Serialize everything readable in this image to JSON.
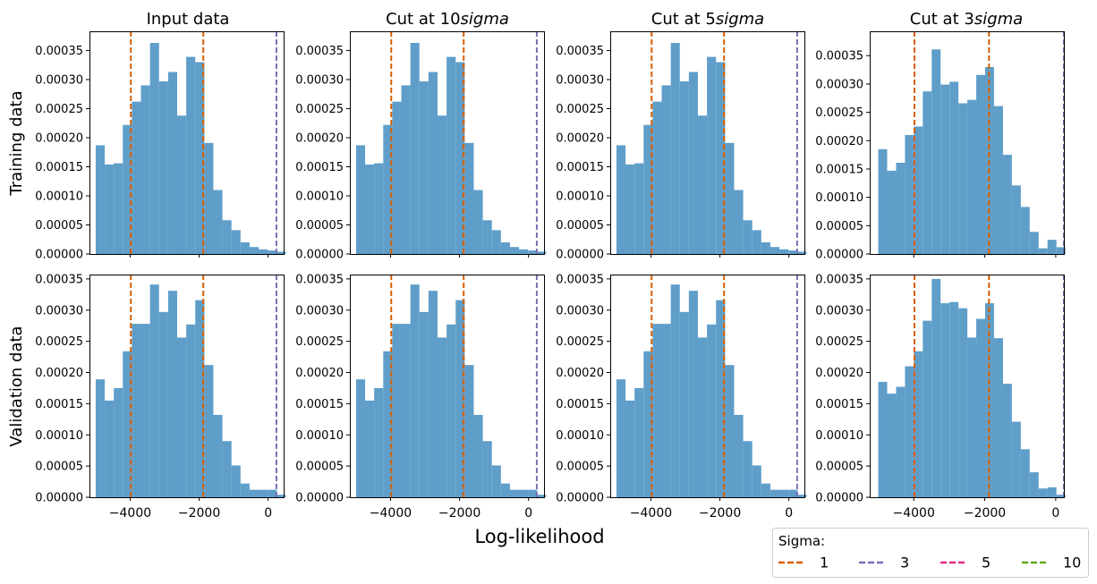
{
  "figure": {
    "xlabel": "Log-likelihood",
    "row_labels": [
      "Training data",
      "Validation data"
    ],
    "col_titles": [
      "Input data",
      "Cut at 10",
      "Cut at 5",
      "Cut at 3"
    ],
    "col_title_suffix": "sigma",
    "legend": {
      "title": "Sigma:",
      "items": [
        {
          "label": "1",
          "color": "#d95f02"
        },
        {
          "label": "3",
          "color": "#7570b3"
        },
        {
          "label": "5",
          "color": "#e7298a"
        },
        {
          "label": "10",
          "color": "#66a61e"
        }
      ],
      "placement": "bottom-right"
    }
  },
  "chart_data": [
    {
      "type": "bar",
      "title": "Input data",
      "ylabel": "Training data",
      "xlabel": "",
      "bin_start": -5000,
      "bin_width": 262.5,
      "values": [
        0.000187,
        0.000154,
        0.000156,
        0.000222,
        0.000262,
        0.00029,
        0.000363,
        0.000297,
        0.000313,
        0.000238,
        0.000339,
        0.00033,
        0.000191,
        0.00011,
        5.8e-05,
        4.1e-05,
        2e-05,
        1.2e-05,
        8e-06,
        6e-06,
        4e-06
      ],
      "vlines": [
        {
          "x": -3980,
          "sigma": "1"
        },
        {
          "x": -1880,
          "sigma": "1"
        },
        {
          "x": 240,
          "sigma": "3"
        }
      ],
      "xlim": [
        -5180,
        450
      ],
      "ylim": [
        0,
        0.000383
      ],
      "xticks": [
        "-4000",
        "-2000",
        "0"
      ],
      "xtick_values": [
        -4000,
        -2000,
        0
      ],
      "yticks": [
        "0.00000",
        "0.00005",
        "0.00010",
        "0.00015",
        "0.00020",
        "0.00025",
        "0.00030",
        "0.00035"
      ],
      "ytick_values": [
        0,
        5e-05,
        0.0001,
        0.00015,
        0.0002,
        0.00025,
        0.0003,
        0.00035
      ]
    },
    {
      "type": "bar",
      "title": "Cut at 10sigma",
      "ylabel": "",
      "xlabel": "",
      "bin_start": -5000,
      "bin_width": 262.5,
      "values": [
        0.000187,
        0.000154,
        0.000156,
        0.000222,
        0.000262,
        0.00029,
        0.000363,
        0.000297,
        0.000313,
        0.000238,
        0.000339,
        0.00033,
        0.000191,
        0.00011,
        5.8e-05,
        4.1e-05,
        2e-05,
        1.2e-05,
        8e-06,
        6e-06,
        4e-06
      ],
      "vlines": [
        {
          "x": -3980,
          "sigma": "1"
        },
        {
          "x": -1880,
          "sigma": "1"
        },
        {
          "x": 240,
          "sigma": "3"
        }
      ],
      "xlim": [
        -5180,
        450
      ],
      "ylim": [
        0,
        0.000383
      ],
      "xticks": [
        "-4000",
        "-2000",
        "0"
      ],
      "xtick_values": [
        -4000,
        -2000,
        0
      ],
      "yticks": [
        "0.00000",
        "0.00005",
        "0.00010",
        "0.00015",
        "0.00020",
        "0.00025",
        "0.00030",
        "0.00035"
      ],
      "ytick_values": [
        0,
        5e-05,
        0.0001,
        0.00015,
        0.0002,
        0.00025,
        0.0003,
        0.00035
      ]
    },
    {
      "type": "bar",
      "title": "Cut at 5sigma",
      "ylabel": "",
      "xlabel": "",
      "bin_start": -5000,
      "bin_width": 262.5,
      "values": [
        0.000187,
        0.000154,
        0.000156,
        0.000222,
        0.000262,
        0.00029,
        0.000363,
        0.000297,
        0.000313,
        0.000238,
        0.000339,
        0.00033,
        0.000191,
        0.00011,
        5.8e-05,
        4.1e-05,
        2e-05,
        1.2e-05,
        8e-06,
        6e-06,
        4e-06
      ],
      "vlines": [
        {
          "x": -3980,
          "sigma": "1"
        },
        {
          "x": -1880,
          "sigma": "1"
        },
        {
          "x": 240,
          "sigma": "3"
        }
      ],
      "xlim": [
        -5180,
        450
      ],
      "ylim": [
        0,
        0.000383
      ],
      "xticks": [
        "-4000",
        "-2000",
        "0"
      ],
      "xtick_values": [
        -4000,
        -2000,
        0
      ],
      "yticks": [
        "0.00000",
        "0.00005",
        "0.00010",
        "0.00015",
        "0.00020",
        "0.00025",
        "0.00030",
        "0.00035"
      ],
      "ytick_values": [
        0,
        5e-05,
        0.0001,
        0.00015,
        0.0002,
        0.00025,
        0.0003,
        0.00035
      ]
    },
    {
      "type": "bar",
      "title": "Cut at 3sigma",
      "ylabel": "",
      "xlabel": "",
      "bin_start": -5000,
      "bin_width": 251,
      "values": [
        0.000185,
        0.000147,
        0.000161,
        0.00021,
        0.000225,
        0.000287,
        0.000361,
        0.000299,
        0.000304,
        0.000266,
        0.000272,
        0.000316,
        0.00033,
        0.000261,
        0.000175,
        0.000121,
        8.3e-05,
        3.9e-05,
        1e-05,
        2.5e-05,
        1.2e-05
      ],
      "vlines": [
        {
          "x": -3980,
          "sigma": "1"
        },
        {
          "x": -1880,
          "sigma": "1"
        },
        {
          "x": 230,
          "sigma": "3"
        }
      ],
      "xlim": [
        -5240,
        230
      ],
      "ylim": [
        0,
        0.000393
      ],
      "xticks": [
        "-4000",
        "-2000",
        "0"
      ],
      "xtick_values": [
        -4000,
        -2000,
        0
      ],
      "yticks": [
        "0.00000",
        "0.00005",
        "0.00010",
        "0.00015",
        "0.00020",
        "0.00025",
        "0.00030",
        "0.00035"
      ],
      "ytick_values": [
        0,
        5e-05,
        0.0001,
        0.00015,
        0.0002,
        0.00025,
        0.0003,
        0.00035
      ]
    },
    {
      "type": "bar",
      "title": "",
      "ylabel": "Validation data",
      "xlabel": "",
      "bin_start": -5000,
      "bin_width": 262.5,
      "values": [
        0.000189,
        0.000155,
        0.000175,
        0.000234,
        0.000278,
        0.000278,
        0.000341,
        0.000297,
        0.000331,
        0.000256,
        0.000277,
        0.000316,
        0.000212,
        0.000132,
        9e-05,
        5.1e-05,
        2.2e-05,
        1.2e-05,
        1.2e-05,
        1.2e-05,
        4e-06
      ],
      "vlines": [
        {
          "x": -3980,
          "sigma": "1"
        },
        {
          "x": -1880,
          "sigma": "1"
        },
        {
          "x": 240,
          "sigma": "3"
        }
      ],
      "xlim": [
        -5180,
        450
      ],
      "ylim": [
        0,
        0.000357
      ],
      "xticks": [
        "-4000",
        "-2000",
        "0"
      ],
      "xtick_values": [
        -4000,
        -2000,
        0
      ],
      "yticks": [
        "0.00000",
        "0.00005",
        "0.00010",
        "0.00015",
        "0.00020",
        "0.00025",
        "0.00030",
        "0.00035"
      ],
      "ytick_values": [
        0,
        5e-05,
        0.0001,
        0.00015,
        0.0002,
        0.00025,
        0.0003,
        0.00035
      ]
    },
    {
      "type": "bar",
      "title": "",
      "ylabel": "",
      "xlabel": "",
      "bin_start": -5000,
      "bin_width": 262.5,
      "values": [
        0.000189,
        0.000155,
        0.000175,
        0.000234,
        0.000278,
        0.000278,
        0.000341,
        0.000297,
        0.000331,
        0.000256,
        0.000277,
        0.000316,
        0.000212,
        0.000132,
        9e-05,
        5.1e-05,
        2.2e-05,
        1.2e-05,
        1.2e-05,
        1.2e-05,
        4e-06
      ],
      "vlines": [
        {
          "x": -3980,
          "sigma": "1"
        },
        {
          "x": -1880,
          "sigma": "1"
        },
        {
          "x": 240,
          "sigma": "3"
        }
      ],
      "xlim": [
        -5180,
        450
      ],
      "ylim": [
        0,
        0.000357
      ],
      "xticks": [
        "-4000",
        "-2000",
        "0"
      ],
      "xtick_values": [
        -4000,
        -2000,
        0
      ],
      "yticks": [
        "0.00000",
        "0.00005",
        "0.00010",
        "0.00015",
        "0.00020",
        "0.00025",
        "0.00030",
        "0.00035"
      ],
      "ytick_values": [
        0,
        5e-05,
        0.0001,
        0.00015,
        0.0002,
        0.00025,
        0.0003,
        0.00035
      ]
    },
    {
      "type": "bar",
      "title": "",
      "ylabel": "",
      "xlabel": "",
      "bin_start": -5000,
      "bin_width": 262.5,
      "values": [
        0.000189,
        0.000155,
        0.000175,
        0.000234,
        0.000278,
        0.000278,
        0.000341,
        0.000297,
        0.000331,
        0.000256,
        0.000277,
        0.000316,
        0.000212,
        0.000132,
        9e-05,
        5.1e-05,
        2.2e-05,
        1.2e-05,
        1.2e-05,
        1.2e-05,
        4e-06
      ],
      "vlines": [
        {
          "x": -3980,
          "sigma": "1"
        },
        {
          "x": -1880,
          "sigma": "1"
        },
        {
          "x": 240,
          "sigma": "3"
        }
      ],
      "xlim": [
        -5180,
        450
      ],
      "ylim": [
        0,
        0.000357
      ],
      "xticks": [
        "-4000",
        "-2000",
        "0"
      ],
      "xtick_values": [
        -4000,
        -2000,
        0
      ],
      "yticks": [
        "0.00000",
        "0.00005",
        "0.00010",
        "0.00015",
        "0.00020",
        "0.00025",
        "0.00030",
        "0.00035"
      ],
      "ytick_values": [
        0,
        5e-05,
        0.0001,
        0.00015,
        0.0002,
        0.00025,
        0.0003,
        0.00035
      ]
    },
    {
      "type": "bar",
      "title": "",
      "ylabel": "",
      "xlabel": "",
      "bin_start": -5000,
      "bin_width": 251,
      "values": [
        0.000185,
        0.000166,
        0.000177,
        0.00021,
        0.000234,
        0.000283,
        0.00035,
        0.000311,
        0.000313,
        0.000303,
        0.000256,
        0.000286,
        0.000311,
        0.000255,
        0.000182,
        0.000121,
        7.7e-05,
        4e-05,
        1.4e-05,
        1.6e-05,
        4e-06
      ],
      "vlines": [
        {
          "x": -3980,
          "sigma": "1"
        },
        {
          "x": -1880,
          "sigma": "1"
        },
        {
          "x": 230,
          "sigma": "3"
        }
      ],
      "xlim": [
        -5240,
        230
      ],
      "ylim": [
        0,
        0.000357
      ],
      "xticks": [
        "-4000",
        "-2000",
        "0"
      ],
      "xtick_values": [
        -4000,
        -2000,
        0
      ],
      "yticks": [
        "0.00000",
        "0.00005",
        "0.00010",
        "0.00015",
        "0.00020",
        "0.00025",
        "0.00030",
        "0.00035"
      ],
      "ytick_values": [
        0,
        5e-05,
        0.0001,
        0.00015,
        0.0002,
        0.00025,
        0.0003,
        0.00035
      ]
    }
  ]
}
